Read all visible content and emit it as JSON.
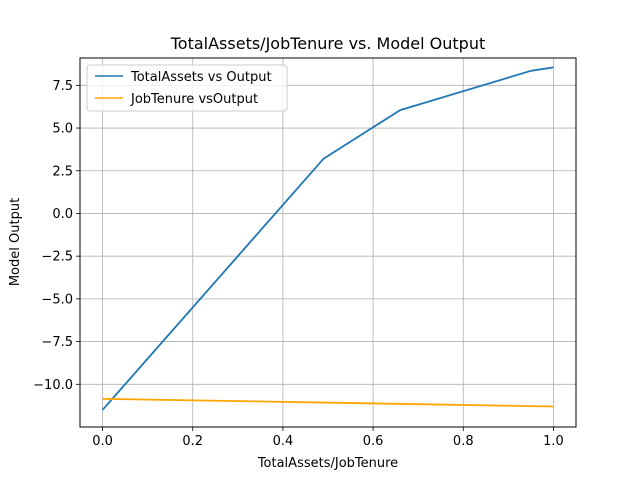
{
  "chart_data": {
    "type": "line",
    "title": "TotalAssets/JobTenure vs. Model Output",
    "xlabel": "TotalAssets/JobTenure",
    "ylabel": "Model Output",
    "xlim": [
      -0.05,
      1.05
    ],
    "ylim": [
      -12.5,
      9.1
    ],
    "xticks": [
      0.0,
      0.2,
      0.4,
      0.6,
      0.8,
      1.0
    ],
    "xtick_labels": [
      "0.0",
      "0.2",
      "0.4",
      "0.6",
      "0.8",
      "1.0"
    ],
    "yticks": [
      -10.0,
      -7.5,
      -5.0,
      -2.5,
      0.0,
      2.5,
      5.0,
      7.5
    ],
    "ytick_labels": [
      "−10.0",
      "−7.5",
      "−5.0",
      "−2.5",
      "0.0",
      "2.5",
      "5.0",
      "7.5"
    ],
    "grid": true,
    "legend_position": "top-left",
    "series": [
      {
        "name": "TotalAssets vs Output",
        "color": "#1f77b4",
        "x": [
          0.0,
          0.49,
          0.66,
          0.95,
          1.0
        ],
        "y": [
          -11.5,
          3.2,
          6.05,
          8.35,
          8.55
        ]
      },
      {
        "name": "JobTenure vsOutput",
        "color": "#ffa500",
        "x": [
          0.0,
          1.0
        ],
        "y": [
          -10.85,
          -11.3
        ]
      }
    ]
  }
}
